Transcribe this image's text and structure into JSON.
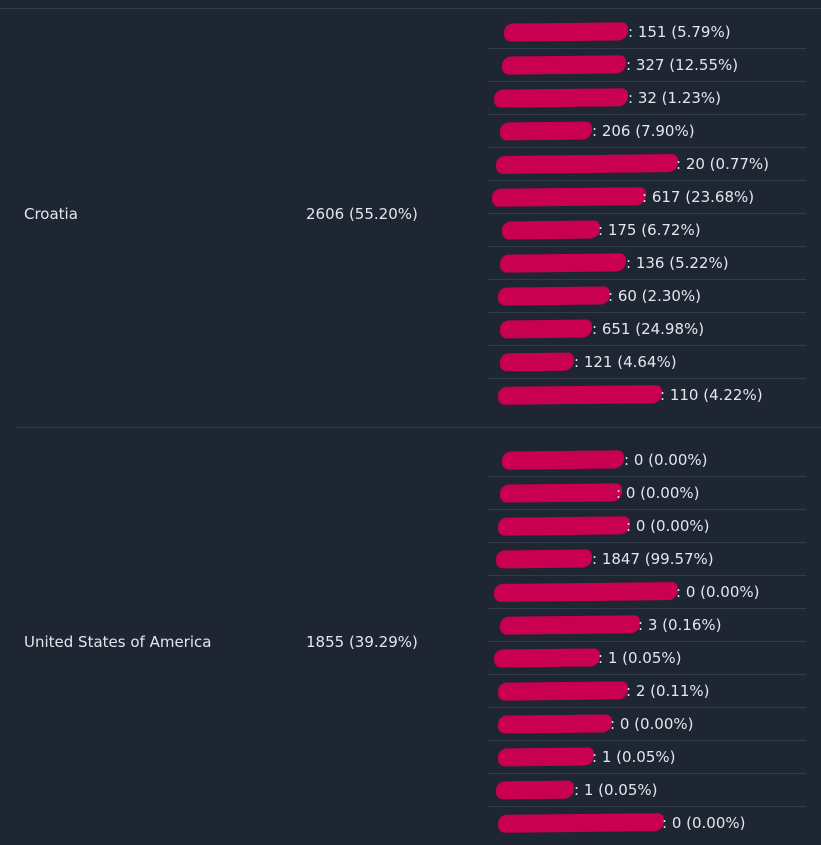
{
  "rows": [
    {
      "country": "Croatia",
      "total": "2606 (55.20%)",
      "items": [
        {
          "value": ": 151 (5.79%)"
        },
        {
          "value": ": 327 (12.55%)"
        },
        {
          "value": ": 32 (1.23%)"
        },
        {
          "value": ": 206 (7.90%)"
        },
        {
          "value": ": 20 (0.77%)"
        },
        {
          "value": ": 617 (23.68%)"
        },
        {
          "value": ": 175 (6.72%)"
        },
        {
          "value": ": 136 (5.22%)"
        },
        {
          "value": ": 60 (2.30%)"
        },
        {
          "value": ": 651 (24.98%)"
        },
        {
          "value": ": 121 (4.64%)"
        },
        {
          "value": ": 110 (4.22%)"
        }
      ]
    },
    {
      "country": "United States of America",
      "total": "1855 (39.29%)",
      "items": [
        {
          "value": ": 0 (0.00%)"
        },
        {
          "value": ": 0 (0.00%)"
        },
        {
          "value": ": 0 (0.00%)"
        },
        {
          "value": ": 1847 (99.57%)"
        },
        {
          "value": ": 0 (0.00%)"
        },
        {
          "value": ": 3 (0.16%)"
        },
        {
          "value": ": 1 (0.05%)"
        },
        {
          "value": ": 2 (0.11%)"
        },
        {
          "value": ": 0 (0.00%)"
        },
        {
          "value": ": 1 (0.05%)"
        },
        {
          "value": ": 1 (0.05%)"
        },
        {
          "value": ": 0 (0.00%)"
        }
      ]
    }
  ],
  "colors": {
    "background": "#1f2633",
    "divider": "#323b4a",
    "text": "#e3e6ea",
    "redaction": "#c8004f"
  }
}
